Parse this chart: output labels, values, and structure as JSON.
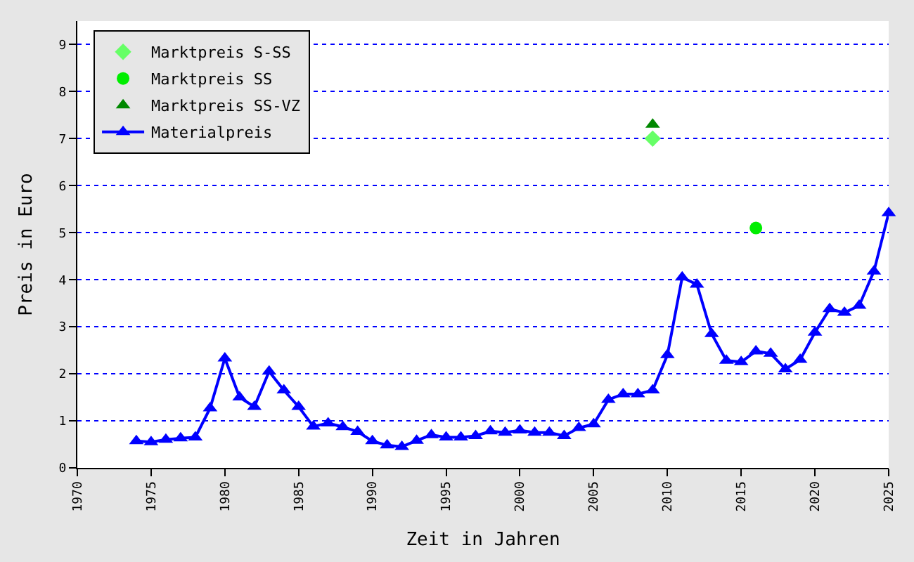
{
  "chart_data": {
    "type": "line",
    "xlabel": "Zeit in Jahren",
    "ylabel": "Preis in Euro",
    "xlim": [
      1970,
      2025
    ],
    "xticks": [
      1970,
      1975,
      1980,
      1985,
      1990,
      1995,
      2000,
      2005,
      2010,
      2015,
      2020,
      2025
    ],
    "ylim": [
      0,
      9.5
    ],
    "yticks": [
      0,
      1,
      2,
      3,
      4,
      5,
      6,
      7,
      8,
      9
    ],
    "grid": "y",
    "legend": "top left",
    "series": [
      {
        "name": "Marktpreis S-SS",
        "type": "scatter",
        "marker": "diamond",
        "color": "#66ff66",
        "x": [
          2009
        ],
        "values": [
          7.0
        ]
      },
      {
        "name": "Marktpreis SS",
        "type": "scatter",
        "marker": "circle",
        "color": "#00ee00",
        "x": [
          2016
        ],
        "values": [
          5.1
        ]
      },
      {
        "name": "Marktpreis SS-VZ",
        "type": "scatter",
        "marker": "triangle",
        "color": "#008800",
        "x": [
          2009
        ],
        "values": [
          7.3
        ]
      },
      {
        "name": "Materialpreis",
        "marker": "triangle",
        "color": "#0000ff",
        "x": [
          1974,
          1975,
          1976,
          1977,
          1978,
          1979,
          1980,
          1981,
          1982,
          1983,
          1984,
          1985,
          1986,
          1987,
          1988,
          1989,
          1990,
          1991,
          1992,
          1993,
          1994,
          1995,
          1996,
          1997,
          1998,
          1999,
          2000,
          2001,
          2002,
          2003,
          2004,
          2005,
          2006,
          2007,
          2008,
          2009,
          2010,
          2011,
          2012,
          2013,
          2014,
          2015,
          2016,
          2017,
          2018,
          2019,
          2020,
          2021,
          2022,
          2023,
          2024,
          2025
        ],
        "values": [
          0.57,
          0.55,
          0.6,
          0.63,
          0.65,
          1.27,
          2.33,
          1.5,
          1.3,
          2.05,
          1.65,
          1.3,
          0.88,
          0.95,
          0.87,
          0.77,
          0.57,
          0.48,
          0.45,
          0.58,
          0.7,
          0.65,
          0.65,
          0.68,
          0.78,
          0.75,
          0.8,
          0.75,
          0.75,
          0.68,
          0.85,
          0.93,
          1.45,
          1.57,
          1.57,
          1.65,
          2.4,
          4.05,
          3.9,
          2.85,
          2.28,
          2.25,
          2.48,
          2.43,
          2.1,
          2.3,
          2.88,
          3.38,
          3.3,
          3.45,
          4.18,
          5.42
        ]
      }
    ]
  }
}
